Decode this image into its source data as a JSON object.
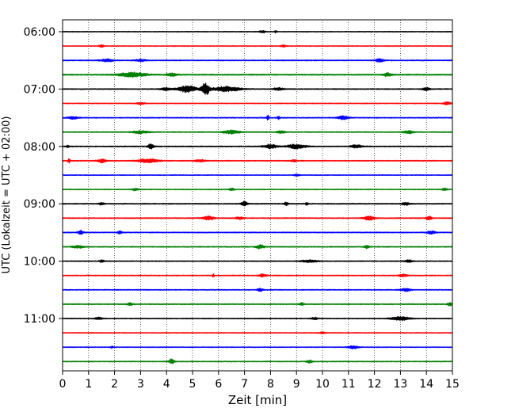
{
  "chart_data": {
    "type": "line",
    "title": "",
    "xlabel": "Zeit  [min]",
    "ylabel": "UTC (Lokalzeit = UTC + 02:00)",
    "xlim": [
      0,
      15
    ],
    "xticks": [
      "0",
      "1",
      "2",
      "3",
      "4",
      "5",
      "6",
      "7",
      "8",
      "9",
      "10",
      "11",
      "12",
      "13",
      "14",
      "15"
    ],
    "ytick_labels": [
      "06:00",
      "07:00",
      "08:00",
      "09:00",
      "10:00",
      "11:00"
    ],
    "ytick_rows": [
      0,
      4,
      8,
      12,
      16,
      20
    ],
    "grid": "vertical dotted lines at each minute",
    "trace_colors": [
      "#000000",
      "#ff0000",
      "#0000ff",
      "#008000"
    ],
    "rows": [
      {
        "start": "06:00",
        "color": "#000000",
        "noise": 0.5,
        "events": [
          {
            "x": 7.7,
            "amp": 1.4,
            "width": 0.12
          },
          {
            "x": 8.2,
            "amp": 1.2,
            "width": 0.05
          }
        ]
      },
      {
        "start": "06:15",
        "color": "#ff0000",
        "noise": 0.5,
        "events": [
          {
            "x": 1.5,
            "amp": 1.3,
            "width": 0.1
          },
          {
            "x": 8.5,
            "amp": 1.2,
            "width": 0.1
          }
        ]
      },
      {
        "start": "06:30",
        "color": "#0000ff",
        "noise": 0.6,
        "events": [
          {
            "x": 1.7,
            "amp": 1.6,
            "width": 0.25
          },
          {
            "x": 3.0,
            "amp": 1.4,
            "width": 0.2
          },
          {
            "x": 12.2,
            "amp": 2.0,
            "width": 0.15
          }
        ]
      },
      {
        "start": "06:45",
        "color": "#008000",
        "noise": 0.7,
        "events": [
          {
            "x": 2.7,
            "amp": 2.8,
            "width": 0.5
          },
          {
            "x": 4.2,
            "amp": 1.6,
            "width": 0.2
          },
          {
            "x": 12.5,
            "amp": 2.0,
            "width": 0.15
          }
        ]
      },
      {
        "start": "07:00",
        "color": "#000000",
        "noise": 0.6,
        "events": [
          {
            "x": 4.0,
            "amp": 1.6,
            "width": 0.2
          },
          {
            "x": 4.8,
            "amp": 4.0,
            "width": 0.35
          },
          {
            "x": 5.5,
            "amp": 8.0,
            "width": 0.15
          },
          {
            "x": 6.3,
            "amp": 3.0,
            "width": 0.5
          },
          {
            "x": 8.3,
            "amp": 1.6,
            "width": 0.2
          },
          {
            "x": 14.0,
            "amp": 1.5,
            "width": 0.15
          }
        ]
      },
      {
        "start": "07:15",
        "color": "#ff0000",
        "noise": 0.5,
        "events": [
          {
            "x": 3.0,
            "amp": 1.2,
            "width": 0.15
          },
          {
            "x": 14.8,
            "amp": 1.6,
            "width": 0.15
          }
        ]
      },
      {
        "start": "07:30",
        "color": "#0000ff",
        "noise": 0.6,
        "events": [
          {
            "x": 0.4,
            "amp": 1.5,
            "width": 0.2
          },
          {
            "x": 7.9,
            "amp": 2.8,
            "width": 0.05
          },
          {
            "x": 8.3,
            "amp": 2.0,
            "width": 0.05
          },
          {
            "x": 10.8,
            "amp": 2.2,
            "width": 0.2
          }
        ]
      },
      {
        "start": "07:45",
        "color": "#008000",
        "noise": 0.6,
        "events": [
          {
            "x": 3.0,
            "amp": 1.6,
            "width": 0.3
          },
          {
            "x": 6.5,
            "amp": 2.2,
            "width": 0.3
          },
          {
            "x": 8.4,
            "amp": 1.8,
            "width": 0.15
          },
          {
            "x": 13.3,
            "amp": 1.8,
            "width": 0.2
          }
        ]
      },
      {
        "start": "08:00",
        "color": "#000000",
        "noise": 0.6,
        "events": [
          {
            "x": 0.2,
            "amp": 1.4,
            "width": 0.05
          },
          {
            "x": 3.4,
            "amp": 2.8,
            "width": 0.12
          },
          {
            "x": 8.0,
            "amp": 2.6,
            "width": 0.25
          },
          {
            "x": 9.0,
            "amp": 2.6,
            "width": 0.35
          },
          {
            "x": 11.3,
            "amp": 1.8,
            "width": 0.2
          }
        ]
      },
      {
        "start": "08:15",
        "color": "#ff0000",
        "noise": 0.6,
        "events": [
          {
            "x": 0.25,
            "amp": 3.0,
            "width": 0.04
          },
          {
            "x": 1.5,
            "amp": 2.2,
            "width": 0.15
          },
          {
            "x": 3.3,
            "amp": 2.4,
            "width": 0.35
          },
          {
            "x": 5.3,
            "amp": 1.5,
            "width": 0.2
          },
          {
            "x": 8.9,
            "amp": 1.3,
            "width": 0.1
          }
        ]
      },
      {
        "start": "08:30",
        "color": "#0000ff",
        "noise": 0.5,
        "events": [
          {
            "x": 9.0,
            "amp": 1.2,
            "width": 0.1
          }
        ]
      },
      {
        "start": "08:45",
        "color": "#008000",
        "noise": 0.5,
        "events": [
          {
            "x": 2.8,
            "amp": 1.6,
            "width": 0.12
          },
          {
            "x": 6.5,
            "amp": 1.4,
            "width": 0.1
          },
          {
            "x": 14.7,
            "amp": 1.6,
            "width": 0.1
          }
        ]
      },
      {
        "start": "09:00",
        "color": "#000000",
        "noise": 0.6,
        "events": [
          {
            "x": 1.5,
            "amp": 1.3,
            "width": 0.1
          },
          {
            "x": 7.0,
            "amp": 2.8,
            "width": 0.12
          },
          {
            "x": 8.6,
            "amp": 1.8,
            "width": 0.08
          },
          {
            "x": 9.4,
            "amp": 1.6,
            "width": 0.05
          },
          {
            "x": 13.2,
            "amp": 1.6,
            "width": 0.15
          }
        ]
      },
      {
        "start": "09:15",
        "color": "#ff0000",
        "noise": 0.6,
        "events": [
          {
            "x": 5.6,
            "amp": 2.4,
            "width": 0.2
          },
          {
            "x": 6.8,
            "amp": 1.4,
            "width": 0.15
          },
          {
            "x": 11.8,
            "amp": 2.4,
            "width": 0.2
          },
          {
            "x": 14.1,
            "amp": 2.4,
            "width": 0.1
          }
        ]
      },
      {
        "start": "09:30",
        "color": "#0000ff",
        "noise": 0.6,
        "events": [
          {
            "x": 0.7,
            "amp": 2.4,
            "width": 0.1
          },
          {
            "x": 2.2,
            "amp": 2.0,
            "width": 0.08
          },
          {
            "x": 14.2,
            "amp": 1.8,
            "width": 0.15
          }
        ]
      },
      {
        "start": "09:45",
        "color": "#008000",
        "noise": 0.6,
        "events": [
          {
            "x": 0.6,
            "amp": 1.5,
            "width": 0.2
          },
          {
            "x": 7.6,
            "amp": 2.4,
            "width": 0.15
          },
          {
            "x": 11.7,
            "amp": 1.8,
            "width": 0.1
          }
        ]
      },
      {
        "start": "10:00",
        "color": "#000000",
        "noise": 0.55,
        "events": [
          {
            "x": 1.5,
            "amp": 1.3,
            "width": 0.1
          },
          {
            "x": 9.5,
            "amp": 1.5,
            "width": 0.3
          },
          {
            "x": 13.3,
            "amp": 1.5,
            "width": 0.15
          }
        ]
      },
      {
        "start": "10:15",
        "color": "#ff0000",
        "noise": 0.55,
        "events": [
          {
            "x": 5.8,
            "amp": 2.6,
            "width": 0.03
          },
          {
            "x": 7.7,
            "amp": 1.6,
            "width": 0.15
          },
          {
            "x": 13.1,
            "amp": 1.6,
            "width": 0.15
          }
        ]
      },
      {
        "start": "10:30",
        "color": "#0000ff",
        "noise": 0.55,
        "events": [
          {
            "x": 7.6,
            "amp": 1.6,
            "width": 0.12
          },
          {
            "x": 13.2,
            "amp": 1.8,
            "width": 0.2
          }
        ]
      },
      {
        "start": "10:45",
        "color": "#008000",
        "noise": 0.6,
        "events": [
          {
            "x": 2.6,
            "amp": 1.5,
            "width": 0.12
          },
          {
            "x": 9.2,
            "amp": 1.6,
            "width": 0.1
          },
          {
            "x": 14.9,
            "amp": 1.8,
            "width": 0.1
          }
        ]
      },
      {
        "start": "11:00",
        "color": "#000000",
        "noise": 0.55,
        "events": [
          {
            "x": 1.4,
            "amp": 1.3,
            "width": 0.15
          },
          {
            "x": 9.7,
            "amp": 1.3,
            "width": 0.12
          },
          {
            "x": 13.0,
            "amp": 2.2,
            "width": 0.35
          }
        ]
      },
      {
        "start": "11:15",
        "color": "#ff0000",
        "noise": 0.5,
        "events": [
          {
            "x": 10.0,
            "amp": 1.2,
            "width": 0.1
          }
        ]
      },
      {
        "start": "11:30",
        "color": "#0000ff",
        "noise": 0.5,
        "events": [
          {
            "x": 1.9,
            "amp": 1.2,
            "width": 0.05
          },
          {
            "x": 11.2,
            "amp": 1.8,
            "width": 0.2
          }
        ]
      },
      {
        "start": "11:45",
        "color": "#008000",
        "noise": 0.55,
        "events": [
          {
            "x": 4.2,
            "amp": 3.2,
            "width": 0.1
          },
          {
            "x": 9.5,
            "amp": 1.6,
            "width": 0.12
          }
        ]
      }
    ]
  }
}
